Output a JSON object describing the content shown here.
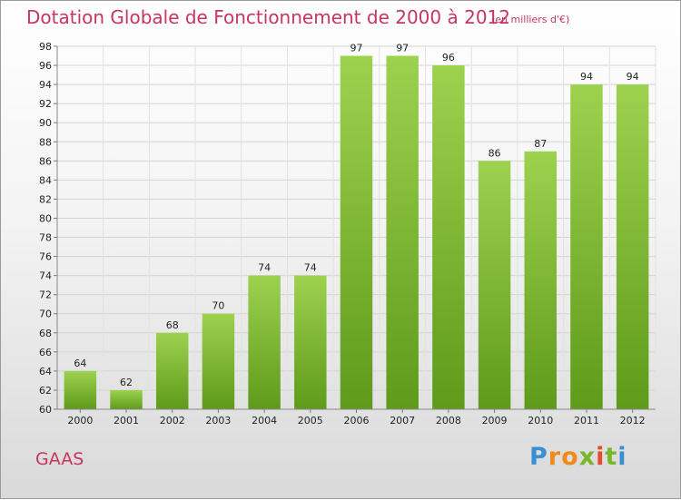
{
  "header": {
    "title": "Dotation Globale de Fonctionnement de 2000 à 2012",
    "unit": "(en milliers d'€)"
  },
  "commune": "GAAS",
  "logo": {
    "letters": [
      "P",
      "r",
      "o",
      "x",
      "i",
      "t",
      "i"
    ]
  },
  "colors": {
    "title": "#c8355e",
    "bar_light": "#9dd24f",
    "bar_dark": "#5f9a1a"
  },
  "chart_data": {
    "type": "bar",
    "title": "Dotation Globale de Fonctionnement de 2000 à 2012",
    "subtitle": "(en milliers d'€)",
    "categories": [
      "2000",
      "2001",
      "2002",
      "2003",
      "2004",
      "2005",
      "2006",
      "2007",
      "2008",
      "2009",
      "2010",
      "2011",
      "2012"
    ],
    "values": [
      64,
      62,
      68,
      70,
      74,
      74,
      97,
      97,
      96,
      86,
      87,
      94,
      94
    ],
    "data_labels": [
      "64",
      "62",
      "68",
      "70",
      "74",
      "74",
      "97",
      "97",
      "96",
      "86",
      "87",
      "94",
      "94"
    ],
    "ylim": [
      60,
      98
    ],
    "yticks": [
      "60",
      "62",
      "64",
      "66",
      "68",
      "70",
      "72",
      "74",
      "76",
      "78",
      "80",
      "82",
      "84",
      "86",
      "88",
      "90",
      "92",
      "94",
      "96",
      "98"
    ],
    "xlabel": "",
    "ylabel": "",
    "grid": true,
    "legend": "none"
  }
}
